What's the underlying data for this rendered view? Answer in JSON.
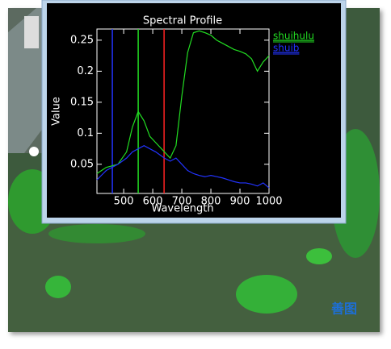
{
  "chart_data": {
    "type": "line",
    "title": "Spectral Profile",
    "x_label": "Wavelength",
    "y_label": "Value",
    "x": [
      408,
      440,
      480,
      510,
      530,
      550,
      570,
      590,
      610,
      640,
      660,
      680,
      700,
      720,
      740,
      760,
      780,
      800,
      820,
      840,
      860,
      880,
      900,
      920,
      940,
      960,
      980,
      1000
    ],
    "series": [
      {
        "name": "shuihulu",
        "color": "#22dd22",
        "values": [
          0.035,
          0.045,
          0.05,
          0.07,
          0.11,
          0.135,
          0.12,
          0.095,
          0.085,
          0.07,
          0.06,
          0.08,
          0.16,
          0.23,
          0.262,
          0.265,
          0.262,
          0.258,
          0.25,
          0.245,
          0.24,
          0.235,
          0.232,
          0.228,
          0.22,
          0.2,
          0.215,
          0.225
        ]
      },
      {
        "name": "shuib",
        "color": "#2233ff",
        "values": [
          0.025,
          0.04,
          0.05,
          0.06,
          0.07,
          0.075,
          0.08,
          0.075,
          0.07,
          0.06,
          0.055,
          0.06,
          0.05,
          0.04,
          0.035,
          0.032,
          0.03,
          0.032,
          0.03,
          0.028,
          0.025,
          0.022,
          0.02,
          0.02,
          0.018,
          0.015,
          0.02,
          0.012
        ]
      }
    ],
    "vlines": [
      {
        "value": 461,
        "color": "#2233ff"
      },
      {
        "value": 550,
        "color": "#22dd22"
      },
      {
        "value": 639,
        "color": "#ff2222"
      }
    ],
    "xlim": [
      408,
      1000
    ],
    "xticks": [
      500,
      600,
      700,
      800,
      900,
      1000
    ],
    "ylim": [
      0.003,
      0.268
    ],
    "yticks": [
      0.05,
      0.1,
      0.15,
      0.2,
      0.25
    ],
    "legend": "right"
  },
  "watermark": "善图"
}
